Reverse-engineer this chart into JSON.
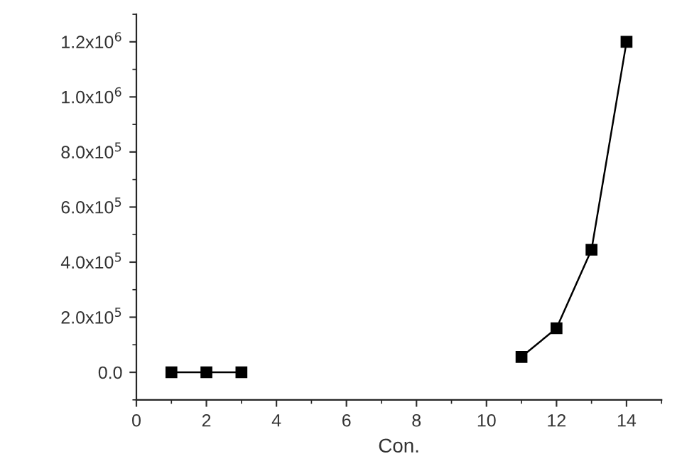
{
  "chart_data": {
    "type": "line",
    "xlabel": "Con.",
    "x": [
      1,
      2,
      3,
      4,
      5,
      6,
      7,
      8,
      9,
      10,
      11,
      12,
      13,
      14
    ],
    "series": [
      {
        "color": "#000000",
        "values": [
          0,
          0,
          0,
          null,
          null,
          null,
          null,
          null,
          null,
          null,
          56000,
          160000,
          445000,
          1200000
        ]
      }
    ],
    "marker": "square",
    "line_style": "solid",
    "grid": false,
    "legend": false,
    "xlim": [
      0,
      15
    ],
    "xticks": [
      0,
      2,
      4,
      6,
      8,
      10,
      12,
      14
    ],
    "ylim": [
      -100000,
      1300000
    ],
    "yticks": [
      {
        "value": 0,
        "label": "0.0"
      },
      {
        "value": 200000,
        "label": "2.0x10$^{5}$"
      },
      {
        "value": 400000,
        "label": "4.0x10$^{5}$"
      },
      {
        "value": 600000,
        "label": "6.0x10$^{5}$"
      },
      {
        "value": 800000,
        "label": "8.0x10$^{5}$"
      },
      {
        "value": 1000000,
        "label": "1.0x10$^{6}$"
      },
      {
        "value": 1200000,
        "label": "1.2x10$^{6}$"
      }
    ]
  }
}
